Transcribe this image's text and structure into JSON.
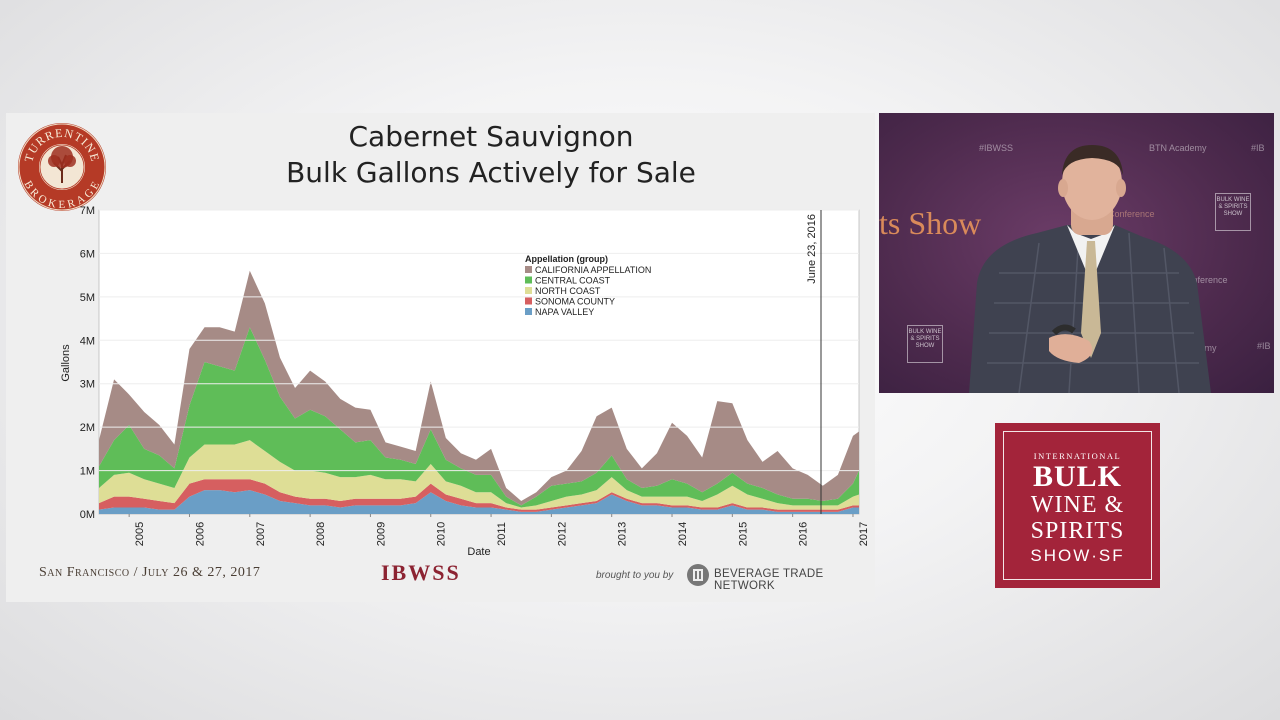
{
  "slide": {
    "title_line1": "Cabernet Sauvignon",
    "title_line2": "Bulk Gallons Actively for Sale",
    "seal_top": "TURRENTINE",
    "seal_bottom": "BROKERAGE",
    "footer_city": "San Francisco / July 26 & 27, 2017",
    "footer_brand": "IBWSS",
    "footer_brought": "brought to you by",
    "footer_btn": "BEVERAGE TRADE NETWORK"
  },
  "chart_data": {
    "type": "area",
    "stacked": true,
    "xlabel": "Date",
    "ylabel": "Gallons",
    "yticks": [
      "0M",
      "1M",
      "2M",
      "3M",
      "4M",
      "5M",
      "6M",
      "7M"
    ],
    "ylim": [
      0,
      7
    ],
    "y_unit": "millions of gallons",
    "xticks": [
      "2005",
      "2006",
      "2007",
      "2008",
      "2009",
      "2010",
      "2011",
      "2012",
      "2013",
      "2014",
      "2015",
      "2016",
      "2017"
    ],
    "xlim": [
      2004.5,
      2017.1
    ],
    "annotation": {
      "x": 2016.47,
      "label": "June 23, 2016"
    },
    "legend_title": "Appellation (group)",
    "legend_position": "top-center",
    "x": [
      2004.5,
      2004.75,
      2005.0,
      2005.25,
      2005.5,
      2005.75,
      2006.0,
      2006.25,
      2006.5,
      2006.75,
      2007.0,
      2007.25,
      2007.5,
      2007.75,
      2008.0,
      2008.25,
      2008.5,
      2008.75,
      2009.0,
      2009.25,
      2009.5,
      2009.75,
      2010.0,
      2010.25,
      2010.5,
      2010.75,
      2011.0,
      2011.25,
      2011.5,
      2011.75,
      2012.0,
      2012.25,
      2012.5,
      2012.75,
      2013.0,
      2013.25,
      2013.5,
      2013.75,
      2014.0,
      2014.25,
      2014.5,
      2014.75,
      2015.0,
      2015.25,
      2015.5,
      2015.75,
      2016.0,
      2016.25,
      2016.5,
      2016.75,
      2017.0,
      2017.1
    ],
    "series": [
      {
        "name": "NAPA VALLEY",
        "color": "#6a9ec6",
        "values": [
          0.1,
          0.15,
          0.15,
          0.15,
          0.1,
          0.1,
          0.4,
          0.55,
          0.55,
          0.5,
          0.55,
          0.45,
          0.3,
          0.25,
          0.2,
          0.2,
          0.15,
          0.2,
          0.2,
          0.2,
          0.2,
          0.25,
          0.5,
          0.3,
          0.2,
          0.15,
          0.15,
          0.1,
          0.05,
          0.05,
          0.1,
          0.15,
          0.2,
          0.25,
          0.45,
          0.3,
          0.2,
          0.2,
          0.15,
          0.15,
          0.1,
          0.1,
          0.2,
          0.1,
          0.1,
          0.05,
          0.05,
          0.05,
          0.05,
          0.05,
          0.15,
          0.15
        ]
      },
      {
        "name": "SONOMA COUNTY",
        "color": "#d65f60",
        "values": [
          0.15,
          0.25,
          0.25,
          0.2,
          0.2,
          0.15,
          0.3,
          0.25,
          0.25,
          0.3,
          0.25,
          0.25,
          0.2,
          0.15,
          0.15,
          0.15,
          0.15,
          0.15,
          0.15,
          0.15,
          0.15,
          0.15,
          0.2,
          0.15,
          0.15,
          0.1,
          0.1,
          0.05,
          0.05,
          0.05,
          0.05,
          0.05,
          0.05,
          0.05,
          0.05,
          0.05,
          0.05,
          0.05,
          0.05,
          0.05,
          0.05,
          0.05,
          0.05,
          0.05,
          0.05,
          0.05,
          0.05,
          0.05,
          0.05,
          0.05,
          0.05,
          0.05
        ]
      },
      {
        "name": "NORTH COAST",
        "color": "#dede96",
        "values": [
          0.35,
          0.5,
          0.55,
          0.45,
          0.4,
          0.35,
          0.6,
          0.8,
          0.8,
          0.8,
          0.9,
          0.75,
          0.7,
          0.6,
          0.65,
          0.6,
          0.55,
          0.5,
          0.55,
          0.45,
          0.45,
          0.35,
          0.45,
          0.3,
          0.3,
          0.25,
          0.25,
          0.1,
          0.05,
          0.1,
          0.15,
          0.2,
          0.2,
          0.25,
          0.35,
          0.2,
          0.15,
          0.15,
          0.2,
          0.2,
          0.15,
          0.3,
          0.4,
          0.3,
          0.2,
          0.15,
          0.1,
          0.1,
          0.1,
          0.1,
          0.2,
          0.25
        ]
      },
      {
        "name": "CENTRAL COAST",
        "color": "#5fbd58",
        "values": [
          0.5,
          0.8,
          1.1,
          0.7,
          0.65,
          0.45,
          1.2,
          1.9,
          1.8,
          1.7,
          2.6,
          2.1,
          1.5,
          1.2,
          1.4,
          1.3,
          1.1,
          0.8,
          0.8,
          0.5,
          0.45,
          0.4,
          0.8,
          0.5,
          0.4,
          0.4,
          0.4,
          0.15,
          0.05,
          0.2,
          0.35,
          0.3,
          0.3,
          0.4,
          0.5,
          0.25,
          0.2,
          0.25,
          0.4,
          0.3,
          0.2,
          0.25,
          0.3,
          0.25,
          0.25,
          0.2,
          0.15,
          0.15,
          0.1,
          0.15,
          0.3,
          0.55
        ]
      },
      {
        "name": "CALIFORNIA APPELLATION",
        "color": "#a68b86",
        "values": [
          0.6,
          1.4,
          0.7,
          0.85,
          0.7,
          0.55,
          1.3,
          0.8,
          0.9,
          0.9,
          1.3,
          1.3,
          0.9,
          0.7,
          0.9,
          0.8,
          0.7,
          0.8,
          0.7,
          0.35,
          0.3,
          0.3,
          1.1,
          0.5,
          0.35,
          0.35,
          0.6,
          0.2,
          0.1,
          0.1,
          0.2,
          0.3,
          0.7,
          1.3,
          1.1,
          0.7,
          0.45,
          0.75,
          1.3,
          1.1,
          0.8,
          1.9,
          1.6,
          1.0,
          0.6,
          1.0,
          0.7,
          0.55,
          0.35,
          0.55,
          1.1,
          0.9
        ]
      }
    ]
  },
  "video": {
    "tags": [
      "#IBWSS",
      "BTN Academy",
      "#IB",
      "IBWSSConference",
      "#IBWSSConference",
      "BTN Academy",
      "#IB"
    ],
    "banner": "ts Show",
    "mini_logo_a": "BULK WINE & SPIRITS SHOW",
    "mini_logo_b": "BULK WINE & SPIRITS SHOW"
  },
  "event_logo": {
    "line1": "INTERNATIONAL",
    "line2": "BULK",
    "line3": "WINE &",
    "line4": "SPIRITS",
    "line5": "SHOW·SF",
    "color": "#a3243a"
  }
}
